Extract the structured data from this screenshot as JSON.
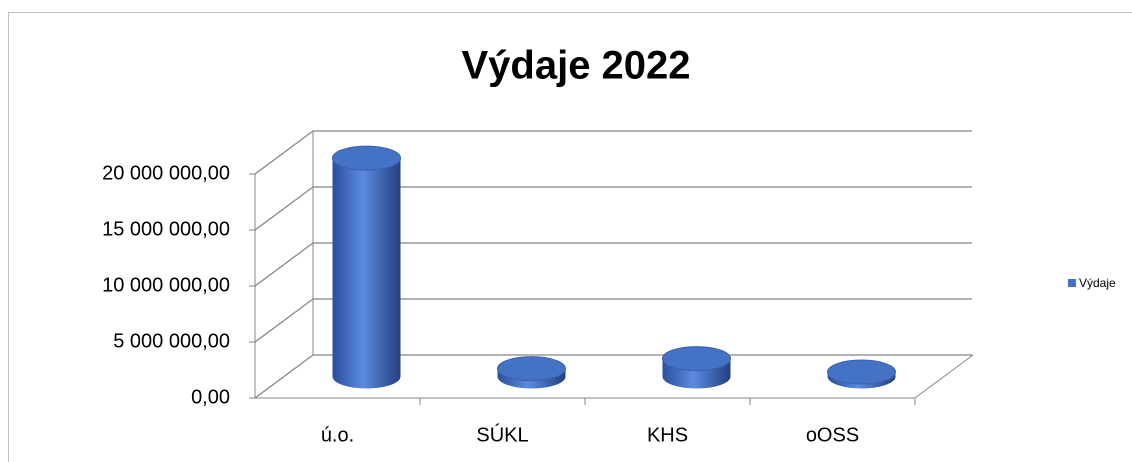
{
  "chart_data": {
    "type": "bar3d",
    "title": "Výdaje 2022",
    "categories": [
      "ú.o.",
      "SÚKL",
      "KHS",
      "oOSS"
    ],
    "series": [
      {
        "name": "Výdaje",
        "color": "#4472c4",
        "values": [
          19500000,
          700000,
          1600000,
          400000
        ]
      }
    ],
    "ylim": [
      0,
      20000000
    ],
    "yticks": [
      {
        "value": 0,
        "label": "0,00"
      },
      {
        "value": 5000000,
        "label": "5 000 000,00"
      },
      {
        "value": 10000000,
        "label": "10 000 000,00"
      },
      {
        "value": 15000000,
        "label": "15 000 000,00"
      },
      {
        "value": 20000000,
        "label": "20 000 000,00"
      }
    ],
    "grid": true,
    "legend": "right"
  }
}
